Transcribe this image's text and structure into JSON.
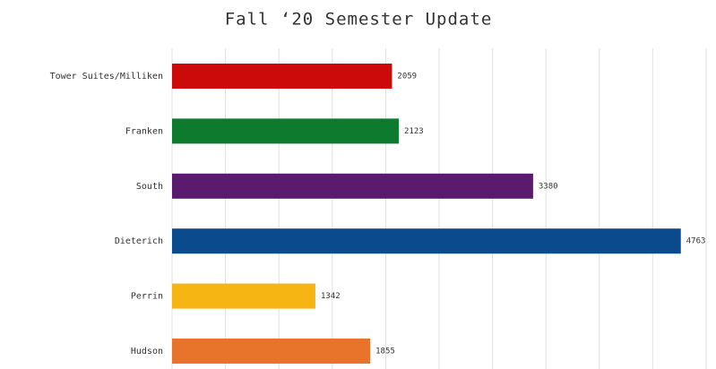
{
  "chart_data": {
    "type": "barh",
    "title": "Fall ‘20 Semester Update",
    "categories": [
      "Tower Suites/Milliken",
      "Franken",
      "South",
      "Dieterich",
      "Perrin",
      "Hudson"
    ],
    "values": [
      2059,
      2123,
      3380,
      4763,
      1342,
      1855
    ],
    "colors": [
      "#cc0a0a",
      "#0d7a2e",
      "#5a1a6e",
      "#0c4a8e",
      "#f7b514",
      "#e8732a"
    ],
    "xlim": [
      0,
      5000
    ],
    "xticks": [
      0,
      500,
      1000,
      1500,
      2000,
      2500,
      3000,
      3500,
      4000,
      4500,
      5000
    ],
    "grid": true
  }
}
